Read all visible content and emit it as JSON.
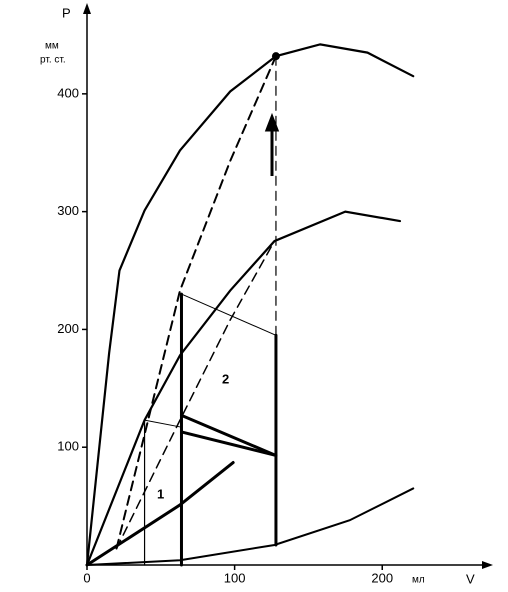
{
  "chart_data": {
    "type": "line",
    "y_label": "P",
    "y_unit_line1": "мм",
    "y_unit_line2": "рт. ст.",
    "x_label": "V",
    "x_unit": "мл",
    "annotations": [
      "1",
      "2"
    ],
    "xlim": [
      0,
      273
    ],
    "ylim": [
      0,
      475
    ],
    "xticks": [
      0,
      100,
      200
    ],
    "yticks": [
      100,
      200,
      300,
      400
    ],
    "series": [
      {
        "color": "#000",
        "width": 2.2,
        "dash": false,
        "x": [
          0,
          15,
          22,
          39,
          63,
          97,
          128,
          158,
          190,
          221
        ],
        "values": [
          0,
          180,
          250,
          301,
          352,
          402,
          432,
          442,
          435,
          415
        ]
      },
      {
        "color": "#000",
        "width": 2.2,
        "dash": false,
        "x": [
          0,
          39,
          63,
          97,
          127,
          175,
          212
        ],
        "values": [
          0,
          123,
          178,
          233,
          275,
          300,
          292
        ]
      },
      {
        "color": "#000",
        "width": 2,
        "dash": false,
        "x": [
          0,
          63,
          127,
          178,
          221
        ],
        "values": [
          0,
          4,
          17,
          38,
          65
        ]
      },
      {
        "color": "#000",
        "width": 3,
        "dash": false,
        "x": [
          0,
          63,
          99
        ],
        "values": [
          0,
          51,
          87
        ]
      },
      {
        "color": "#000",
        "width": 2,
        "dash": true,
        "x": [
          20,
          63,
          97,
          128
        ],
        "values": [
          14,
          233,
          343,
          432
        ]
      },
      {
        "color": "#000",
        "width": 1.5,
        "dash": true,
        "x": [
          20,
          63,
          97,
          127
        ],
        "values": [
          14,
          123,
          208,
          275
        ]
      },
      {
        "color": "#000",
        "width": 1.2,
        "dash": false,
        "x": [
          39,
          39
        ],
        "values": [
          0,
          123
        ]
      },
      {
        "color": "#000",
        "width": 3,
        "dash": false,
        "x": [
          64,
          64
        ],
        "values": [
          0,
          230
        ]
      },
      {
        "color": "#000",
        "width": 3,
        "dash": false,
        "x": [
          128,
          128
        ],
        "values": [
          17,
          195
        ]
      },
      {
        "color": "#000",
        "width": 1.2,
        "dash": true,
        "x": [
          128,
          128
        ],
        "values": [
          195,
          432
        ]
      },
      {
        "color": "#000",
        "width": 1,
        "dash": false,
        "x": [
          64,
          128
        ],
        "values": [
          230,
          195
        ]
      },
      {
        "color": "#000",
        "width": 1,
        "dash": false,
        "x": [
          39,
          64
        ],
        "values": [
          123,
          117
        ]
      },
      {
        "color": "#000",
        "width": 3,
        "dash": false,
        "x": [
          64,
          128
        ],
        "values": [
          127,
          93
        ]
      },
      {
        "color": "#000",
        "width": 3,
        "dash": false,
        "x": [
          64,
          128
        ],
        "values": [
          113,
          93
        ]
      }
    ],
    "points": {
      "x": [
        128
      ],
      "values": [
        432
      ]
    }
  }
}
